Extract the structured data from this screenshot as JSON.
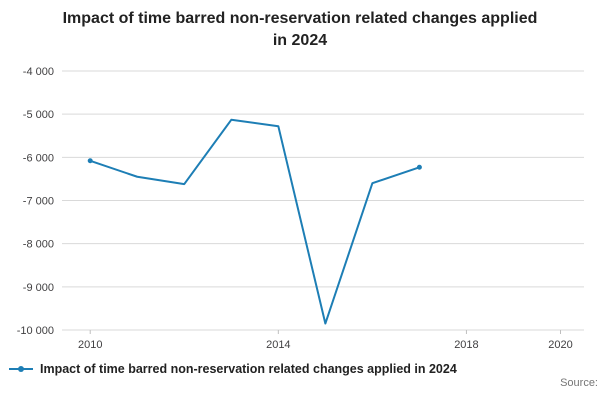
{
  "chart_data": {
    "type": "line",
    "title": "Impact of time barred non-reservation related changes applied in 2024",
    "series_name": "Impact of time barred non-reservation related changes applied in 2024",
    "x": [
      2010,
      2011,
      2012,
      2013,
      2014,
      2015,
      2016,
      2017
    ],
    "values": [
      -6080,
      -6450,
      -6620,
      -5130,
      -5280,
      -9850,
      -6600,
      -6230
    ],
    "xlim": [
      2009.4,
      2020.5
    ],
    "ylim": [
      -10000,
      -4000
    ],
    "yticks": [
      -4000,
      -5000,
      -6000,
      -7000,
      -8000,
      -9000,
      -10000
    ],
    "ytick_labels": [
      "-4 000",
      "-5 000",
      "-6 000",
      "-7 000",
      "-8 000",
      "-9 000",
      "-10 000"
    ],
    "xticks": [
      2010,
      2014,
      2018,
      2020
    ],
    "xtick_labels": [
      "2010",
      "2014",
      "2018",
      "2020"
    ],
    "line_color": "#1d7eb5",
    "grid_color": "#d9d9d9",
    "tick_text_color": "#414042",
    "grid": true,
    "legend_position": "bottom",
    "source_label": "Source:"
  }
}
